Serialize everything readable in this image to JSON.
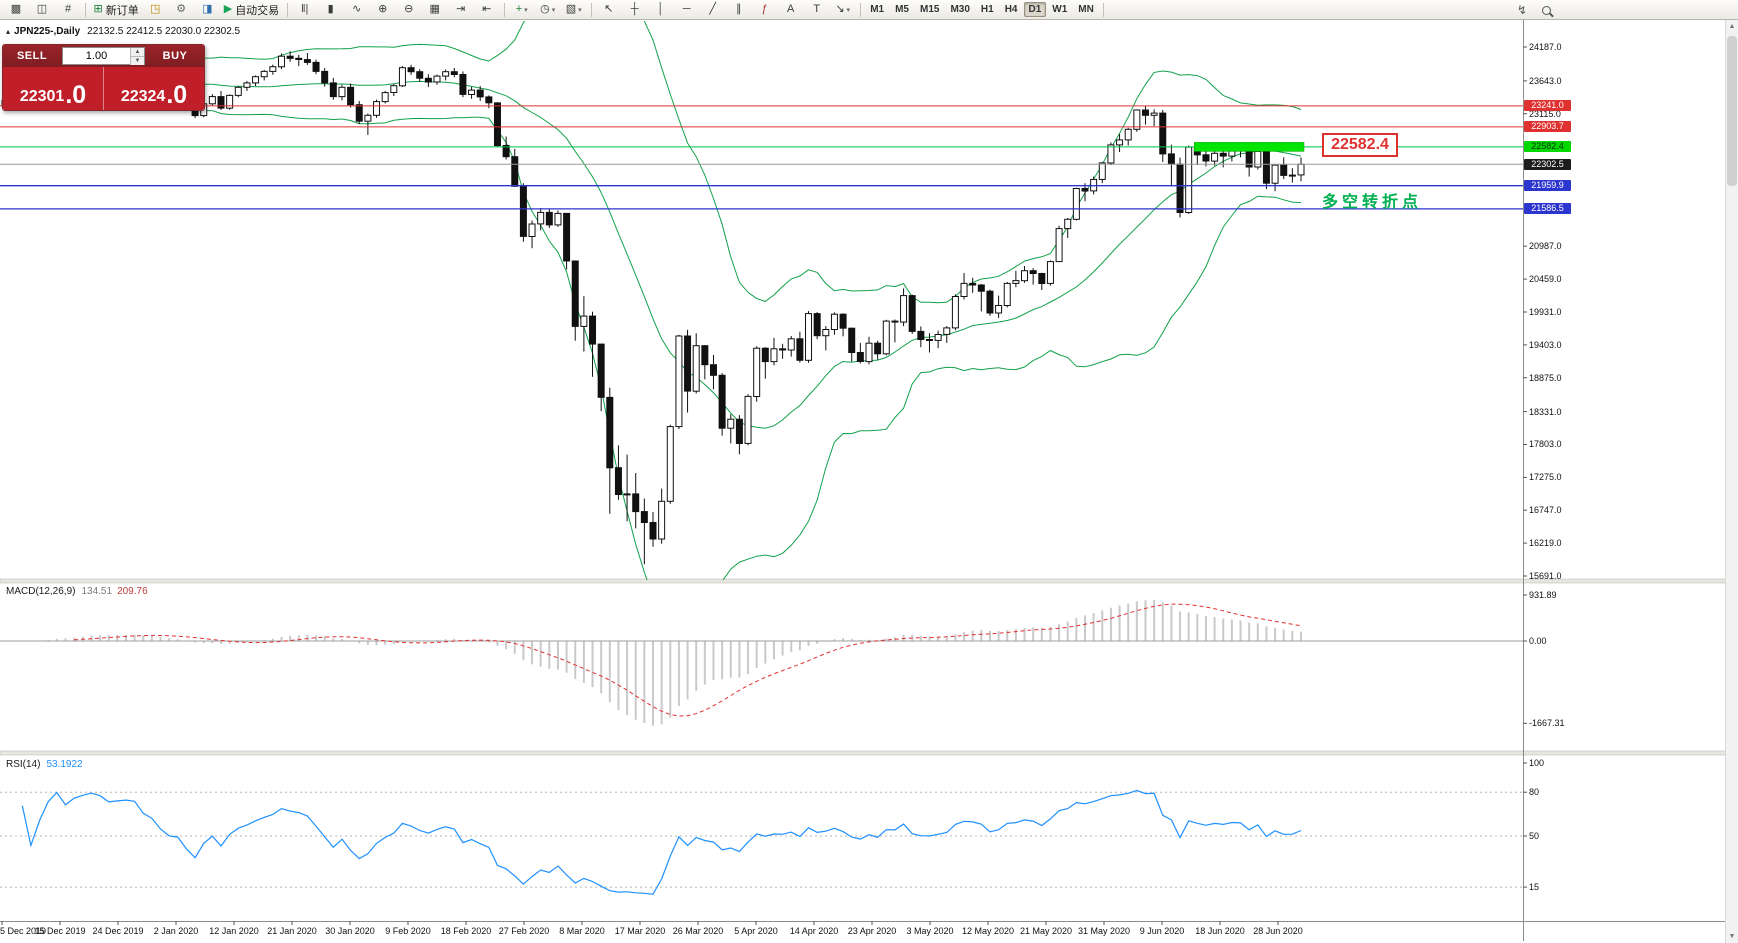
{
  "toolbar": {
    "buttons": [
      {
        "name": "new-chart",
        "glyph": "▩"
      },
      {
        "name": "profiles",
        "glyph": "◫"
      },
      {
        "name": "market-watch",
        "glyph": "#"
      },
      {
        "type": "sep"
      },
      {
        "name": "new-order",
        "glyph": "⊞",
        "glyph_color": "#1a7f37",
        "label": "新订单"
      },
      {
        "name": "metaeditor",
        "glyph": "◳",
        "glyph_color": "#b58900"
      },
      {
        "name": "options",
        "glyph": "⚙",
        "glyph_color": "#666666"
      },
      {
        "name": "data-window",
        "glyph": "◨",
        "glyph_color": "#2f6fb0"
      },
      {
        "name": "autotrading",
        "glyph": "▶",
        "glyph_color": "#18a558",
        "label": "自动交易"
      },
      {
        "type": "sep"
      },
      {
        "name": "bar-chart-mode",
        "glyph": "‖|"
      },
      {
        "name": "candlestick-mode",
        "glyph": "▮"
      },
      {
        "name": "line-chart-mode",
        "glyph": "∿"
      },
      {
        "name": "zoom-in",
        "glyph": "⊕"
      },
      {
        "name": "zoom-out",
        "glyph": "⊖"
      },
      {
        "name": "tile-windows",
        "glyph": "▦"
      },
      {
        "name": "auto-scroll",
        "glyph": "⇥"
      },
      {
        "name": "chart-shift",
        "glyph": "⇤"
      },
      {
        "type": "sep"
      },
      {
        "name": "indicators",
        "glyph": "+",
        "glyph_color": "#1a7f37",
        "dropdown": true
      },
      {
        "name": "periods",
        "glyph": "◷",
        "dropdown": true
      },
      {
        "name": "templates",
        "glyph": "▧",
        "dropdown": true
      },
      {
        "type": "sep"
      },
      {
        "name": "cursor",
        "glyph": "↖"
      },
      {
        "name": "crosshair",
        "glyph": "┼"
      },
      {
        "name": "vertical-line",
        "glyph": "│"
      },
      {
        "name": "horizontal-line",
        "glyph": "─"
      },
      {
        "name": "trendline",
        "glyph": "╱"
      },
      {
        "name": "channel",
        "glyph": "∥"
      },
      {
        "name": "fibonacci",
        "glyph": "ƒ",
        "glyph_color": "#a33"
      },
      {
        "name": "text",
        "glyph": "A"
      },
      {
        "name": "text-label",
        "glyph": "T"
      },
      {
        "name": "arrows",
        "glyph": "↘",
        "dropdown": true
      },
      {
        "type": "sep"
      }
    ],
    "timeframes": [
      "M1",
      "M5",
      "M15",
      "M30",
      "H1",
      "H4",
      "D1",
      "W1",
      "MN"
    ],
    "active_timeframe": "D1"
  },
  "symbol_info": {
    "collapse_icon": "▴",
    "symbol": "JPN225-,Daily",
    "ohlc": "22132.5 22412.5 22030.0 22302.5"
  },
  "trade_panel": {
    "sell_label": "SELL",
    "buy_label": "BUY",
    "quantity": "1.00",
    "sell_price_main": "22301",
    "sell_price_big": ".0",
    "buy_price_main": "22324",
    "buy_price_big": ".0"
  },
  "colors": {
    "band_green": "#12a14b",
    "line_red": "#e03131",
    "line_blue": "#2d35cf",
    "line_green": "#00c24a",
    "zone_green": "#00e400",
    "bid_line": "#9a9a9a",
    "macd_hist": "#c9c9c9",
    "macd_zero": "#9e9e9e",
    "macd_signal": "#e03131",
    "rsi_line": "#1e90ff",
    "candle_up": "#ffffff",
    "candle_down": "#111111",
    "candle_border": "#111111"
  },
  "chart_data": {
    "type": "candlestick",
    "symbol": "JPN225-",
    "period": "Daily",
    "ylim": [
      15691.0,
      24187.0
    ],
    "price_ticks": [
      24187.0,
      23643.0,
      23115.0,
      20987.0,
      20459.0,
      19931.0,
      19403.0,
      18875.0,
      18331.0,
      17803.0,
      17275.0,
      16747.0,
      16219.0,
      15691.0
    ],
    "price_labels": [
      {
        "text": "23241.0",
        "price": 23241.0,
        "bg": "#e03131",
        "fg": "#ffffff"
      },
      {
        "text": "22903.7",
        "price": 22903.7,
        "bg": "#e03131",
        "fg": "#ffffff"
      },
      {
        "text": "22582.4",
        "price": 22582.4,
        "bg": "#00d800",
        "fg": "#05320a"
      },
      {
        "text": "22302.5",
        "price": 22302.5,
        "bg": "#1c1c1c",
        "fg": "#ffffff"
      },
      {
        "text": "21959.9",
        "price": 21959.9,
        "bg": "#2d35cf",
        "fg": "#ffffff"
      },
      {
        "text": "21586.5",
        "price": 21586.5,
        "bg": "#2d35cf",
        "fg": "#ffffff"
      }
    ],
    "hlines": [
      {
        "price": 23241.0,
        "color": "#e03131",
        "width": 1
      },
      {
        "price": 22903.7,
        "color": "#e03131",
        "width": 1
      },
      {
        "price": 22582.4,
        "color": "#00c24a",
        "width": 1
      },
      {
        "price": 22302.5,
        "color": "#9a9a9a",
        "width": 1
      },
      {
        "price": 21959.9,
        "color": "#2d35cf",
        "width": 1.3
      },
      {
        "price": 21586.5,
        "color": "#2d35cf",
        "width": 1.3
      }
    ],
    "green_zone": {
      "price": 22582.4,
      "from_candle": 138
    },
    "bollinger": {
      "period": 20,
      "deviation": 2
    },
    "annotation_price": {
      "text": "22582.4"
    },
    "annotation_note": {
      "text": "多空转折点"
    },
    "macd": {
      "label": "MACD(12,26,9)",
      "v1": "134.51",
      "v2": "209.76",
      "params": [
        12,
        26,
        9
      ],
      "axis": [
        "931.89",
        "0.00",
        "-1667.31"
      ],
      "axis_values": [
        931.89,
        0,
        -1667.31
      ]
    },
    "rsi": {
      "label": "RSI(14)",
      "value": "53.1922",
      "period": 14,
      "axis": [
        "100",
        "80",
        "50",
        "15"
      ],
      "axis_values": [
        100,
        80,
        50,
        15
      ],
      "levels": [
        80,
        50,
        15
      ]
    },
    "dates": [
      "5 Dec 2019",
      "15 Dec 2019",
      "24 Dec 2019",
      "2 Jan 2020",
      "12 Jan 2020",
      "21 Jan 2020",
      "30 Jan 2020",
      "9 Feb 2020",
      "18 Feb 2020",
      "27 Feb 2020",
      "8 Mar 2020",
      "17 Mar 2020",
      "26 Mar 2020",
      "5 Apr 2020",
      "14 Apr 2020",
      "23 Apr 2020",
      "3 May 2020",
      "12 May 2020",
      "21 May 2020",
      "31 May 2020",
      "9 Jun 2020",
      "18 Jun 2020",
      "28 Jun 2020"
    ],
    "candles": [
      [
        23260,
        23395,
        23180,
        23330
      ],
      [
        23330,
        23450,
        23280,
        23415
      ],
      [
        23415,
        23480,
        23320,
        23380
      ],
      [
        23380,
        23440,
        23250,
        23305
      ],
      [
        23305,
        23425,
        23260,
        23390
      ],
      [
        23390,
        23560,
        23350,
        23525
      ],
      [
        23525,
        23685,
        23470,
        23655
      ],
      [
        23655,
        23735,
        23540,
        23590
      ],
      [
        23590,
        23720,
        23550,
        23705
      ],
      [
        23705,
        23815,
        23640,
        23770
      ],
      [
        23770,
        23870,
        23700,
        23830
      ],
      [
        23830,
        23885,
        23740,
        23810
      ],
      [
        23810,
        23855,
        23700,
        23760
      ],
      [
        23760,
        23825,
        23680,
        23785
      ],
      [
        23785,
        23835,
        23710,
        23805
      ],
      [
        23805,
        23840,
        23755,
        23795
      ],
      [
        23795,
        23845,
        23650,
        23690
      ],
      [
        23690,
        23745,
        23580,
        23640
      ],
      [
        23640,
        23705,
        23480,
        23525
      ],
      [
        23525,
        23580,
        23390,
        23440
      ],
      [
        23440,
        23490,
        23370,
        23425
      ],
      [
        23425,
        23515,
        23220,
        23255
      ],
      [
        23255,
        23320,
        23045,
        23085
      ],
      [
        23085,
        23300,
        23060,
        23275
      ],
      [
        23275,
        23430,
        23250,
        23390
      ],
      [
        23390,
        23480,
        23175,
        23205
      ],
      [
        23205,
        23425,
        23180,
        23410
      ],
      [
        23410,
        23560,
        23380,
        23540
      ],
      [
        23540,
        23640,
        23480,
        23610
      ],
      [
        23610,
        23730,
        23560,
        23710
      ],
      [
        23710,
        23820,
        23650,
        23795
      ],
      [
        23795,
        23905,
        23740,
        23870
      ],
      [
        23870,
        24085,
        23830,
        24040
      ],
      [
        24040,
        24120,
        23950,
        24005
      ],
      [
        24005,
        24060,
        23880,
        23985
      ],
      [
        23985,
        24090,
        23900,
        23940
      ],
      [
        23940,
        23985,
        23750,
        23795
      ],
      [
        23795,
        23850,
        23550,
        23610
      ],
      [
        23610,
        23690,
        23340,
        23390
      ],
      [
        23390,
        23580,
        23330,
        23540
      ],
      [
        23540,
        23600,
        23215,
        23260
      ],
      [
        23260,
        23320,
        22950,
        22995
      ],
      [
        22995,
        23120,
        22775,
        23090
      ],
      [
        23090,
        23340,
        23050,
        23310
      ],
      [
        23310,
        23480,
        23280,
        23455
      ],
      [
        23455,
        23590,
        23400,
        23565
      ],
      [
        23565,
        23880,
        23545,
        23855
      ],
      [
        23855,
        23900,
        23740,
        23790
      ],
      [
        23790,
        23830,
        23630,
        23685
      ],
      [
        23685,
        23750,
        23545,
        23625
      ],
      [
        23625,
        23745,
        23580,
        23720
      ],
      [
        23720,
        23825,
        23650,
        23790
      ],
      [
        23790,
        23850,
        23700,
        23745
      ],
      [
        23745,
        23795,
        23380,
        23425
      ],
      [
        23425,
        23545,
        23355,
        23495
      ],
      [
        23495,
        23560,
        23320,
        23385
      ],
      [
        23385,
        23410,
        23205,
        23290
      ],
      [
        23290,
        23300,
        22580,
        22605
      ],
      [
        22605,
        22750,
        22380,
        22425
      ],
      [
        22425,
        22550,
        21940,
        21950
      ],
      [
        21950,
        22000,
        21060,
        21145
      ],
      [
        21145,
        21400,
        20955,
        21345
      ],
      [
        21345,
        21600,
        21245,
        21530
      ],
      [
        21530,
        21595,
        21280,
        21330
      ],
      [
        21330,
        21560,
        21300,
        21515
      ],
      [
        21515,
        21520,
        20615,
        20750
      ],
      [
        20750,
        20760,
        19470,
        19700
      ],
      [
        19700,
        20185,
        19295,
        19865
      ],
      [
        19865,
        19935,
        18890,
        19415
      ],
      [
        19415,
        19420,
        18340,
        18560
      ],
      [
        18560,
        18715,
        16690,
        17430
      ],
      [
        17430,
        17790,
        16915,
        17000
      ],
      [
        17000,
        17640,
        16570,
        17010
      ],
      [
        17010,
        17345,
        16455,
        16725
      ],
      [
        16725,
        16935,
        15880,
        16550
      ],
      [
        16550,
        16720,
        16160,
        16285
      ],
      [
        16285,
        17095,
        16210,
        16890
      ],
      [
        16890,
        18120,
        16850,
        18090
      ],
      [
        18090,
        19565,
        18050,
        19545
      ],
      [
        19545,
        19645,
        18315,
        18660
      ],
      [
        18660,
        19590,
        18620,
        19390
      ],
      [
        19390,
        19400,
        18850,
        19085
      ],
      [
        19085,
        19240,
        18690,
        18915
      ],
      [
        18915,
        18950,
        17945,
        18065
      ],
      [
        18065,
        18290,
        17820,
        18210
      ],
      [
        18210,
        18275,
        17645,
        17820
      ],
      [
        17820,
        18610,
        17790,
        18575
      ],
      [
        18575,
        19380,
        18490,
        19350
      ],
      [
        19350,
        19365,
        18860,
        19135
      ],
      [
        19135,
        19515,
        19075,
        19340
      ],
      [
        19340,
        19420,
        19180,
        19320
      ],
      [
        19320,
        19545,
        19215,
        19500
      ],
      [
        19500,
        19615,
        19120,
        19155
      ],
      [
        19155,
        19945,
        19115,
        19905
      ],
      [
        19905,
        19930,
        19495,
        19550
      ],
      [
        19550,
        19705,
        19315,
        19650
      ],
      [
        19650,
        19925,
        19565,
        19895
      ],
      [
        19895,
        19910,
        19540,
        19670
      ],
      [
        19670,
        19680,
        19135,
        19280
      ],
      [
        19280,
        19435,
        19105,
        19135
      ],
      [
        19135,
        19535,
        19090,
        19430
      ],
      [
        19430,
        19470,
        19165,
        19260
      ],
      [
        19260,
        19805,
        19235,
        19785
      ],
      [
        19785,
        19810,
        19445,
        19770
      ],
      [
        19770,
        20310,
        19705,
        20195
      ],
      [
        20195,
        20210,
        19580,
        19620
      ],
      [
        19620,
        19700,
        19365,
        19490
      ],
      [
        19490,
        19590,
        19280,
        19475
      ],
      [
        19475,
        19630,
        19350,
        19570
      ],
      [
        19570,
        19705,
        19435,
        19675
      ],
      [
        19675,
        20215,
        19640,
        20180
      ],
      [
        20180,
        20555,
        20130,
        20390
      ],
      [
        20390,
        20480,
        20240,
        20365
      ],
      [
        20365,
        20380,
        19940,
        20265
      ],
      [
        20265,
        20290,
        19870,
        19915
      ],
      [
        19915,
        20195,
        19835,
        20035
      ],
      [
        20035,
        20415,
        20005,
        20390
      ],
      [
        20390,
        20595,
        20330,
        20435
      ],
      [
        20435,
        20670,
        20400,
        20595
      ],
      [
        20595,
        20635,
        20370,
        20550
      ],
      [
        20550,
        20560,
        20285,
        20390
      ],
      [
        20390,
        20760,
        20355,
        20740
      ],
      [
        20740,
        21315,
        20735,
        21270
      ],
      [
        21270,
        21440,
        21120,
        21420
      ],
      [
        21420,
        21925,
        21400,
        21915
      ],
      [
        21915,
        22000,
        21710,
        21875
      ],
      [
        21875,
        22105,
        21820,
        22060
      ],
      [
        22060,
        22340,
        22000,
        22325
      ],
      [
        22325,
        22655,
        22290,
        22615
      ],
      [
        22615,
        22790,
        22500,
        22695
      ],
      [
        22695,
        22890,
        22605,
        22865
      ],
      [
        22865,
        23185,
        22825,
        23175
      ],
      [
        23175,
        23240,
        22940,
        23090
      ],
      [
        23090,
        23185,
        22915,
        23125
      ],
      [
        23125,
        23175,
        22340,
        22470
      ],
      [
        22470,
        22620,
        21945,
        22305
      ],
      [
        22305,
        22410,
        21450,
        21530
      ],
      [
        21530,
        22605,
        21505,
        22580
      ],
      [
        22580,
        22620,
        22290,
        22455
      ],
      [
        22455,
        22530,
        22270,
        22355
      ],
      [
        22355,
        22560,
        22280,
        22480
      ],
      [
        22480,
        22530,
        22255,
        22435
      ],
      [
        22435,
        22580,
        22350,
        22550
      ],
      [
        22550,
        22620,
        22415,
        22535
      ],
      [
        22535,
        22545,
        22105,
        22260
      ],
      [
        22260,
        22580,
        22220,
        22510
      ],
      [
        22510,
        22515,
        21905,
        22000
      ],
      [
        22000,
        22305,
        21870,
        22290
      ],
      [
        22290,
        22415,
        22065,
        22125
      ],
      [
        22125,
        22240,
        22010,
        22130
      ],
      [
        22132.5,
        22412.5,
        22030,
        22302.5
      ]
    ]
  }
}
